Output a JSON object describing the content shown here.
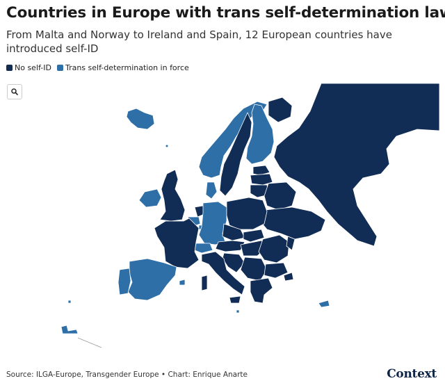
{
  "header": {
    "title": "Countries in Europe with trans self-determination laws",
    "subtitle": "From Malta and Norway to Ireland and Spain, 12 European countries have introduced self-ID"
  },
  "legend": {
    "items": [
      {
        "label": "No self-ID",
        "color": "#112d55"
      },
      {
        "label": "Trans self-determination in force",
        "color": "#2f6fa8"
      }
    ]
  },
  "controls": {
    "zoom_icon": "search-icon"
  },
  "map": {
    "colors": {
      "no_self_id": "#112d55",
      "self_id": "#2f6fa8",
      "border": "#ffffff",
      "background": "#ffffff"
    }
  },
  "footer": {
    "source": "Source: ILGA-Europe, Transgender Europe • Chart: Enrique Anarte",
    "brand": "Context"
  }
}
